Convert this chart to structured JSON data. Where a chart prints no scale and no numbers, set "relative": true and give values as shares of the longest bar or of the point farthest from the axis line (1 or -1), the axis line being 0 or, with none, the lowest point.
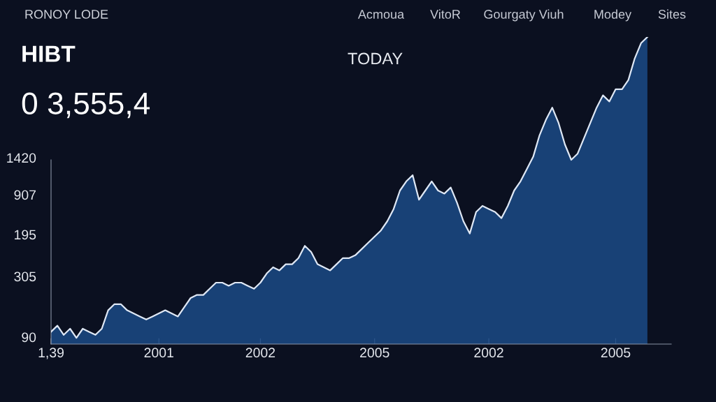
{
  "chart_data": {
    "type": "area",
    "title": "HIBT",
    "relative": true,
    "annotations": [
      "RONOY LODE",
      "Acmoua",
      "VitoR",
      "Gourgaty Viuh",
      "Modey",
      "Sites",
      "TODAY",
      "0 3,555,4",
      "1420",
      "907",
      "195",
      "305",
      "90"
    ],
    "categories": [
      "1,39",
      null,
      null,
      null,
      null,
      null,
      null,
      null,
      null,
      null,
      null,
      null,
      null,
      null,
      null,
      null,
      null,
      "2001",
      null,
      null,
      null,
      null,
      null,
      null,
      null,
      null,
      null,
      null,
      null,
      null,
      null,
      null,
      null,
      "2002",
      null,
      null,
      null,
      null,
      null,
      null,
      null,
      null,
      null,
      null,
      null,
      null,
      null,
      null,
      null,
      null,
      null,
      "2005",
      null,
      null,
      null,
      null,
      null,
      null,
      null,
      null,
      null,
      null,
      null,
      null,
      null,
      null,
      null,
      null,
      null,
      "2002",
      null,
      null,
      null,
      null,
      null,
      null,
      null,
      null,
      null,
      null,
      null,
      null,
      null,
      null,
      null,
      null,
      null,
      null,
      null,
      "2005",
      null,
      null,
      null,
      null,
      null
    ],
    "series": [
      {
        "color": "#dfe8f5",
        "values": [
          0.04,
          0.06,
          0.03,
          0.05,
          0.02,
          0.05,
          0.04,
          0.03,
          0.05,
          0.11,
          0.13,
          0.13,
          0.11,
          0.1,
          0.09,
          0.08,
          0.09,
          0.1,
          0.11,
          0.1,
          0.09,
          0.12,
          0.15,
          0.16,
          0.16,
          0.18,
          0.2,
          0.2,
          0.19,
          0.2,
          0.2,
          0.19,
          0.18,
          0.2,
          0.23,
          0.25,
          0.24,
          0.26,
          0.26,
          0.28,
          0.32,
          0.3,
          0.26,
          0.25,
          0.24,
          0.26,
          0.28,
          0.28,
          0.29,
          0.31,
          0.33,
          0.35,
          0.37,
          0.4,
          0.44,
          0.5,
          0.53,
          0.55,
          0.47,
          0.5,
          0.53,
          0.5,
          0.49,
          0.51,
          0.46,
          0.4,
          0.36,
          0.43,
          0.45,
          0.44,
          0.43,
          0.41,
          0.45,
          0.5,
          0.53,
          0.57,
          0.61,
          0.68,
          0.73,
          0.77,
          0.72,
          0.65,
          0.6,
          0.62,
          0.67,
          0.72,
          0.77,
          0.81,
          0.79,
          0.83,
          0.83,
          0.86,
          0.93,
          0.98,
          1
        ]
      }
    ],
    "grid": false
  }
}
